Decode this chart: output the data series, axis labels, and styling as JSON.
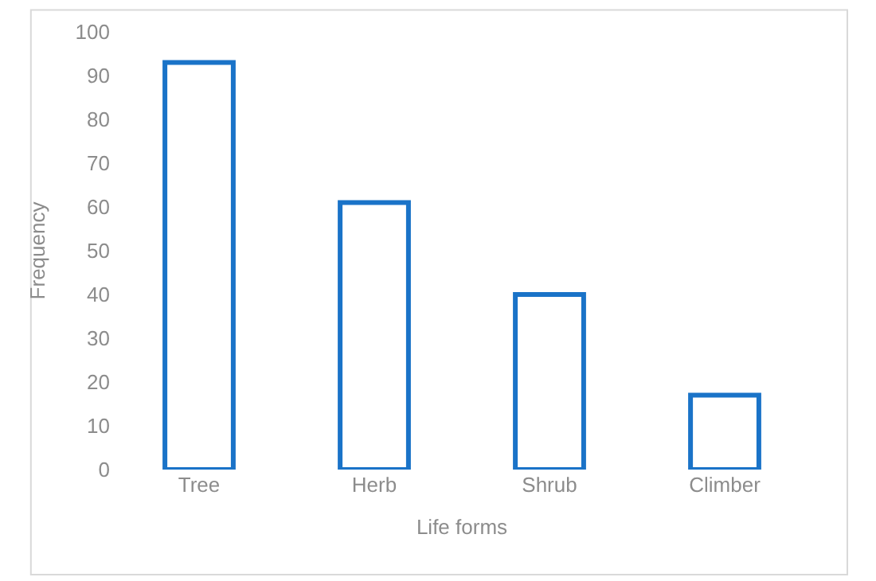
{
  "chart_data": {
    "type": "bar",
    "xlabel": "Life forms",
    "ylabel": "Frequency",
    "categories": [
      "Tree",
      "Herb",
      "Shrub",
      "Climber"
    ],
    "values": [
      93,
      61,
      40,
      17
    ],
    "color": "#1a73c8",
    "ylim": [
      0,
      100
    ],
    "yticks": [
      0,
      10,
      20,
      30,
      40,
      50,
      60,
      70,
      80,
      90,
      100
    ]
  }
}
